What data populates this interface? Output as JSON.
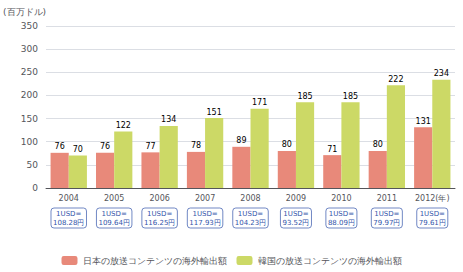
{
  "chart_data": {
    "type": "bar",
    "ylabel": "(百万ドル)",
    "categories": [
      "2004",
      "2005",
      "2006",
      "2007",
      "2008",
      "2009",
      "2010",
      "2011",
      "2012(年)"
    ],
    "series": [
      {
        "name": "日本の放送コンテンツの海外輸出額",
        "color": "#e8897a",
        "values": [
          76,
          76,
          77,
          78,
          89,
          80,
          71,
          80,
          131
        ]
      },
      {
        "name": "韓国の放送コンテンツの海外輸出額",
        "color": "#ccd966",
        "values": [
          70,
          122,
          134,
          151,
          171,
          185,
          185,
          222,
          234
        ]
      }
    ],
    "annotations": [
      "1USD=\n108.28円",
      "1USD=\n109.64円",
      "1USD=\n116.25円",
      "1USD=\n117.93円",
      "1USD=\n104.23円",
      "1USD=\n93.52円",
      "1USD=\n88.09円",
      "1USD=\n79.97円",
      "1USD=\n79.61円"
    ],
    "ylim": [
      0,
      350
    ],
    "yticks": [
      0,
      50,
      100,
      150,
      200,
      250,
      300,
      350
    ],
    "grid": true,
    "data_labels": true,
    "legend": "bottom"
  }
}
